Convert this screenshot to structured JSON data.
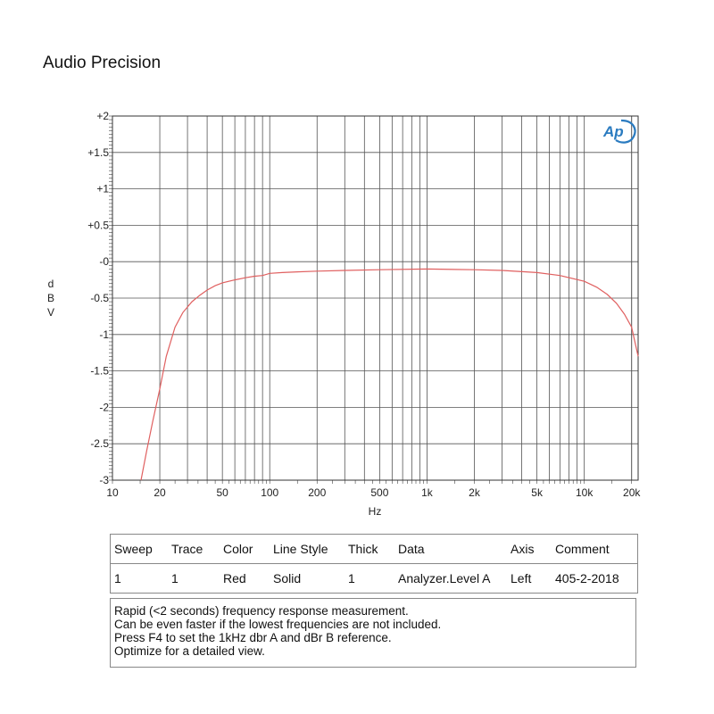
{
  "title": "Audio Precision",
  "chart_data": {
    "type": "line",
    "xscale": "log",
    "xlim": [
      10,
      22000
    ],
    "ylim": [
      -3,
      2
    ],
    "xlabel": "Hz",
    "ylabel": "dBV",
    "grid": true,
    "x_ticks": [
      10,
      20,
      50,
      100,
      200,
      500,
      1000,
      2000,
      5000,
      10000,
      20000
    ],
    "x_tick_labels": [
      "10",
      "20",
      "50",
      "100",
      "200",
      "500",
      "1k",
      "2k",
      "5k",
      "10k",
      "20k"
    ],
    "y_ticks": [
      2,
      1.5,
      1,
      0.5,
      0,
      -0.5,
      -1,
      -1.5,
      -2,
      -2.5,
      -3
    ],
    "y_tick_labels": [
      "+2",
      "+1.5",
      "+1",
      "+0.5",
      "-0",
      "-0.5",
      "-1",
      "-1.5",
      "-2",
      "-2.5",
      "-3"
    ],
    "series": [
      {
        "color": "#e06060",
        "x": [
          15.2,
          16.5,
          18,
          20,
          22,
          25,
          28,
          32,
          36,
          40,
          45,
          50,
          60,
          70,
          80,
          90,
          100,
          120,
          150,
          200,
          300,
          500,
          1000,
          2000,
          3000,
          5000,
          7000,
          10000,
          12000,
          14000,
          16000,
          18000,
          20000,
          22000
        ],
        "y": [
          -3.0,
          -2.6,
          -2.2,
          -1.75,
          -1.3,
          -0.9,
          -0.7,
          -0.55,
          -0.46,
          -0.39,
          -0.33,
          -0.29,
          -0.25,
          -0.22,
          -0.2,
          -0.19,
          -0.16,
          -0.15,
          -0.14,
          -0.13,
          -0.12,
          -0.11,
          -0.1,
          -0.11,
          -0.12,
          -0.15,
          -0.19,
          -0.27,
          -0.35,
          -0.45,
          -0.57,
          -0.72,
          -0.9,
          -1.3
        ]
      }
    ]
  },
  "logo": "Ap",
  "legend": {
    "headers": [
      "Sweep",
      "Trace",
      "Color",
      "Line Style",
      "Thick",
      "Data",
      "Axis",
      "Comment"
    ],
    "row": [
      "1",
      "1",
      "Red",
      "Solid",
      "1",
      "Analyzer.Level A",
      "Left",
      "405-2-2018"
    ]
  },
  "notes": [
    "Rapid (<2 seconds) frequency response measurement.",
    "Can be even faster if the lowest frequencies are not included.",
    "Press F4 to set the 1kHz dbr A and dBr B reference.",
    "Optimize for a detailed view."
  ]
}
